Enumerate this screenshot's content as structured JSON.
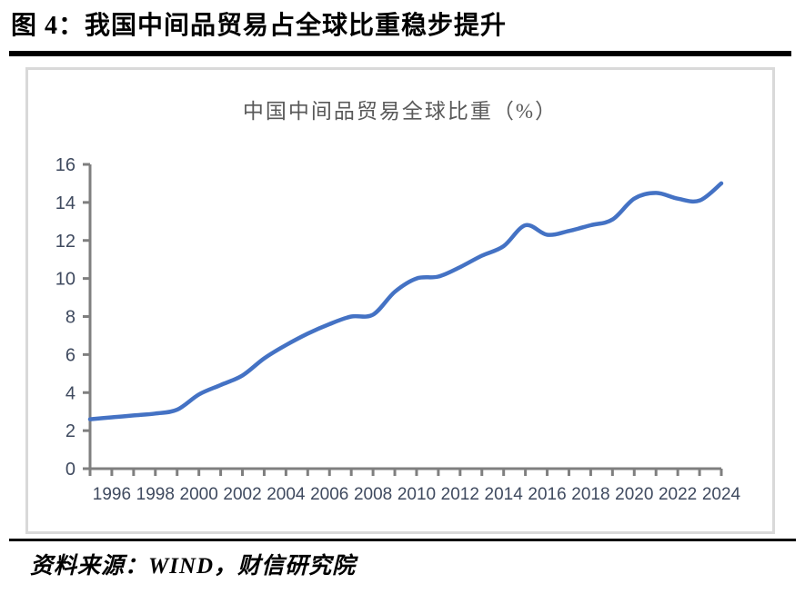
{
  "page": {
    "title": "图 4：我国中间品贸易占全球比重稳步提升",
    "source_note": "资料来源：WIND，财信研究院"
  },
  "chart_data": {
    "type": "line",
    "title": "中国中间品贸易全球比重（%）",
    "x": [
      1995,
      1996,
      1997,
      1998,
      1999,
      2000,
      2001,
      2002,
      2003,
      2004,
      2005,
      2006,
      2007,
      2008,
      2009,
      2010,
      2011,
      2012,
      2013,
      2014,
      2015,
      2016,
      2017,
      2018,
      2019,
      2020,
      2021,
      2022,
      2023,
      2024
    ],
    "series": [
      {
        "name": "中国中间品贸易全球比重（%）",
        "values": [
          2.6,
          2.7,
          2.8,
          2.9,
          3.1,
          3.9,
          4.4,
          4.9,
          5.8,
          6.5,
          7.1,
          7.6,
          8.0,
          8.1,
          9.3,
          10.0,
          10.1,
          10.6,
          11.2,
          11.7,
          12.8,
          12.3,
          12.5,
          12.8,
          13.1,
          14.2,
          14.5,
          14.2,
          14.1,
          15.0
        ]
      }
    ],
    "xlabel": "",
    "ylabel": "",
    "ylim": [
      0,
      16
    ],
    "yticks": [
      0,
      2,
      4,
      6,
      8,
      10,
      12,
      14,
      16
    ],
    "xtick_labels": [
      "1996",
      "1998",
      "2000",
      "2002",
      "2004",
      "2006",
      "2008",
      "2010",
      "2012",
      "2014",
      "2016",
      "2018",
      "2020",
      "2022",
      "2024"
    ],
    "grid": false,
    "legend": false,
    "smooth": true,
    "line_color": "#4472C4",
    "axis_color": "#7F7F7F",
    "tick_label_color": "#3F4A5F"
  }
}
